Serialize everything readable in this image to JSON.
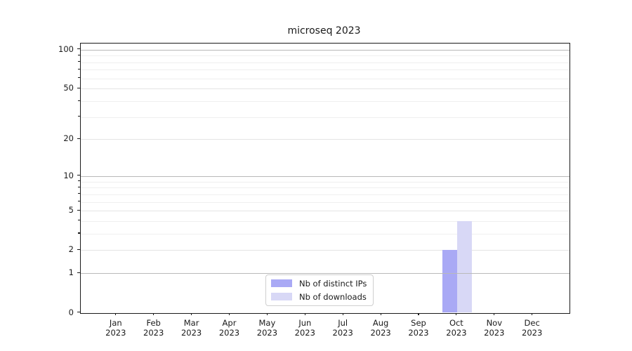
{
  "figure": {
    "background": "#ffffff",
    "text_color": "#1a1a1a"
  },
  "chart_data": {
    "type": "bar",
    "title": "microseq 2023",
    "categories": [
      "Jan",
      "Feb",
      "Mar",
      "Apr",
      "May",
      "Jun",
      "Jul",
      "Aug",
      "Sep",
      "Oct",
      "Nov",
      "Dec"
    ],
    "category_year": "2023",
    "series": [
      {
        "name": "Nb of distinct IPs",
        "color": "#a9a9f5",
        "values": [
          0,
          0,
          0,
          0,
          0,
          0,
          0,
          0,
          0,
          2,
          0,
          0
        ]
      },
      {
        "name": "Nb of downloads",
        "color": "#d8d8f6",
        "values": [
          0,
          0,
          0,
          0,
          0,
          0,
          0,
          0,
          0,
          4,
          0,
          0
        ]
      }
    ],
    "xlabel": "",
    "ylabel": "",
    "yscale": "log1p",
    "ylim": [
      0,
      112
    ],
    "yticks_labeled": [
      0,
      1,
      2,
      5,
      10,
      20,
      50,
      100
    ],
    "yticks_decade": [
      1,
      10,
      100
    ],
    "yticks_minor": [
      3,
      4,
      6,
      7,
      8,
      9,
      30,
      40,
      60,
      70,
      80,
      90
    ],
    "grid": true,
    "legend_position": "lower center",
    "grid_colors": {
      "decade": "#b9b9b9",
      "labeled": "#e4e4e4",
      "minor": "#efefef"
    }
  }
}
